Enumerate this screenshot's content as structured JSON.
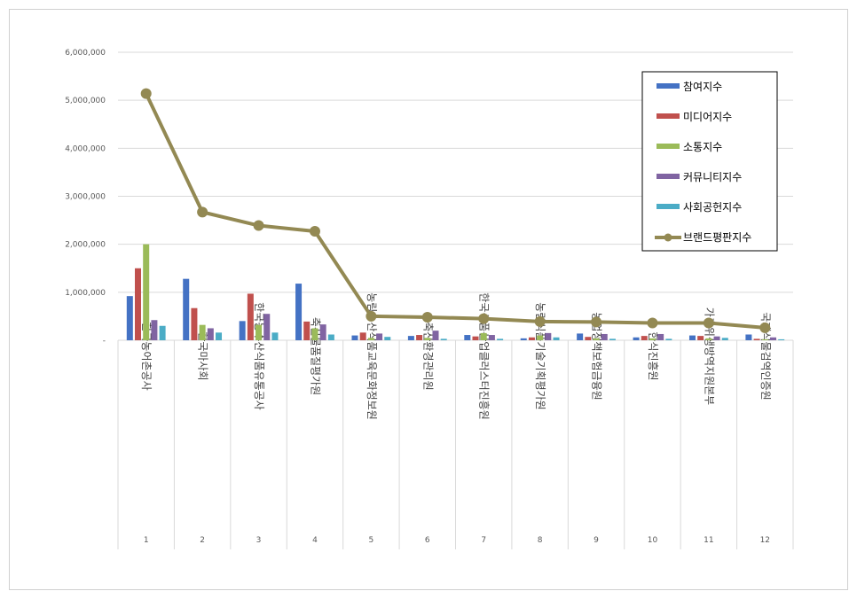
{
  "chart_data": {
    "type": "bar",
    "overlay_type": "line",
    "title": "",
    "xlabel": "",
    "ylabel": "",
    "ylim": [
      0,
      6000000
    ],
    "yticks": [
      0,
      1000000,
      2000000,
      3000000,
      4000000,
      5000000,
      6000000
    ],
    "ytick_labels": [
      "-",
      "1,000,000",
      "2,000,000",
      "3,000,000",
      "4,000,000",
      "5,000,000",
      "6,000,000"
    ],
    "grid": true,
    "legend_position": "top-right",
    "categories": [
      "한국농어촌공사",
      "한국마사회",
      "한국농수산식품유통공사",
      "축산물품질평가원",
      "농림수산식품교육문화정보원",
      "축산환경관리원",
      "한국식품산업클러스터진흥원",
      "농림식품기술기획평가원",
      "농업정책보험금융원",
      "한식진흥원",
      "가축위생방역지원본부",
      "국제식물검역인증원"
    ],
    "category_numbers": [
      "1",
      "2",
      "3",
      "4",
      "5",
      "6",
      "7",
      "8",
      "9",
      "10",
      "11",
      "12"
    ],
    "series": [
      {
        "name": "참여지수",
        "type": "bar",
        "color": "#4472C4",
        "values": [
          920000,
          1280000,
          400000,
          1180000,
          100000,
          90000,
          110000,
          40000,
          140000,
          60000,
          100000,
          120000
        ]
      },
      {
        "name": "미디어지수",
        "type": "bar",
        "color": "#C0504D",
        "values": [
          1500000,
          670000,
          970000,
          390000,
          160000,
          110000,
          80000,
          60000,
          70000,
          90000,
          90000,
          30000
        ]
      },
      {
        "name": "소통지수",
        "type": "bar",
        "color": "#9BBB59",
        "values": [
          2000000,
          320000,
          320000,
          250000,
          50000,
          50000,
          150000,
          100000,
          40000,
          40000,
          40000,
          20000
        ]
      },
      {
        "name": "커뮤니티지수",
        "type": "bar",
        "color": "#8064A2",
        "values": [
          420000,
          250000,
          550000,
          330000,
          140000,
          200000,
          110000,
          150000,
          130000,
          130000,
          80000,
          60000
        ]
      },
      {
        "name": "사회공헌지수",
        "type": "bar",
        "color": "#4BACC6",
        "values": [
          300000,
          160000,
          160000,
          120000,
          70000,
          30000,
          30000,
          60000,
          30000,
          30000,
          50000,
          20000
        ]
      },
      {
        "name": "브랜드평판지수",
        "type": "line",
        "color": "#938953",
        "values": [
          5140000,
          2670000,
          2390000,
          2270000,
          500000,
          480000,
          450000,
          390000,
          380000,
          360000,
          360000,
          260000
        ]
      }
    ]
  }
}
